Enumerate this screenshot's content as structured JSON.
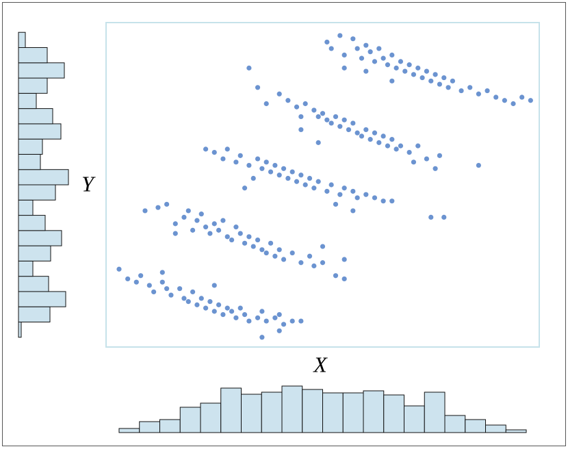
{
  "chart_data": {
    "type": "scatter",
    "xlabel": "X",
    "ylabel": "Y",
    "color": "#6b93d0",
    "hist_color": "#cde3ee",
    "xlim": [
      0,
      100
    ],
    "ylim": [
      0,
      100
    ],
    "x": [
      3,
      5,
      7,
      8,
      10,
      11,
      13,
      14,
      15,
      17,
      18,
      19,
      20,
      21,
      22,
      23,
      24,
      25,
      26,
      27,
      28,
      29,
      30,
      31,
      32,
      33,
      35,
      36,
      37,
      39,
      40,
      41,
      43,
      45,
      36,
      40,
      25,
      13,
      9,
      12,
      14,
      16,
      18,
      19,
      20,
      21,
      22,
      23,
      24,
      25,
      26,
      27,
      28,
      29,
      30,
      31,
      32,
      33,
      34,
      35,
      36,
      37,
      38,
      39,
      40,
      41,
      43,
      45,
      47,
      48,
      50,
      53,
      55,
      55,
      50,
      16,
      23,
      25,
      27,
      28,
      30,
      31,
      33,
      35,
      36,
      37,
      38,
      39,
      40,
      41,
      42,
      43,
      44,
      45,
      46,
      47,
      48,
      49,
      51,
      52,
      54,
      55,
      57,
      58,
      60,
      62,
      64,
      66,
      57,
      53,
      34,
      32,
      75,
      78,
      33,
      35,
      37,
      40,
      42,
      44,
      45,
      46,
      48,
      49,
      50,
      51,
      52,
      53,
      54,
      55,
      56,
      57,
      58,
      59,
      60,
      61,
      62,
      63,
      64,
      65,
      66,
      67,
      68,
      70,
      72,
      74,
      77,
      86,
      76,
      71,
      45,
      49,
      51,
      52,
      54,
      55,
      57,
      58,
      59,
      60,
      61,
      62,
      63,
      64,
      65,
      66,
      67,
      68,
      69,
      70,
      71,
      72,
      73,
      74,
      75,
      76,
      77,
      78,
      79,
      80,
      82,
      84,
      86,
      88,
      90,
      92,
      94,
      96,
      98,
      66,
      60,
      55
    ],
    "y": [
      24,
      21,
      20,
      22,
      19,
      17,
      20,
      18,
      16,
      18,
      15,
      14,
      17,
      13,
      15,
      12,
      14,
      11,
      13,
      10,
      12,
      11,
      9,
      12,
      10,
      8,
      9,
      11,
      8,
      9,
      10,
      7,
      8,
      8,
      3,
      5,
      19,
      23,
      42,
      43,
      44,
      38,
      40,
      42,
      36,
      39,
      41,
      37,
      35,
      38,
      36,
      39,
      34,
      33,
      37,
      35,
      32,
      34,
      31,
      33,
      30,
      29,
      32,
      28,
      30,
      27,
      29,
      26,
      28,
      25,
      26,
      22,
      27,
      21,
      31,
      35,
      61,
      60,
      58,
      61,
      57,
      59,
      56,
      58,
      55,
      57,
      54,
      56,
      53,
      55,
      52,
      54,
      51,
      53,
      50,
      52,
      49,
      51,
      48,
      50,
      47,
      49,
      48,
      46,
      47,
      46,
      45,
      45,
      42,
      44,
      52,
      49,
      40,
      40,
      86,
      80,
      75,
      78,
      76,
      74,
      71,
      75,
      73,
      71,
      72,
      70,
      69,
      71,
      68,
      70,
      67,
      69,
      66,
      65,
      67,
      64,
      66,
      63,
      65,
      62,
      64,
      61,
      62,
      60,
      62,
      58,
      59,
      56,
      55,
      57,
      67,
      63,
      94,
      92,
      96,
      90,
      95,
      92,
      89,
      93,
      91,
      88,
      92,
      89,
      87,
      90,
      86,
      88,
      85,
      87,
      84,
      86,
      83,
      85,
      82,
      84,
      81,
      83,
      80,
      82,
      79,
      80,
      78,
      79,
      77,
      76,
      75,
      77,
      76,
      82,
      85,
      86
    ],
    "marginal_x": {
      "bins": [
        3,
        7.7,
        12.4,
        17.1,
        21.8,
        26.5,
        31.2,
        35.9,
        40.6,
        45.3,
        50,
        54.7,
        59.4,
        64.1,
        68.8,
        73.5,
        78.2,
        82.9,
        87.6,
        92.3,
        97
      ],
      "counts": [
        6,
        16,
        19,
        37,
        43,
        65,
        56,
        59,
        68,
        63,
        58,
        58,
        61,
        55,
        39,
        59,
        25,
        19,
        11,
        4
      ]
    },
    "marginal_y": {
      "bins": [
        3,
        7.7,
        12.4,
        17.1,
        21.8,
        26.5,
        31.2,
        35.9,
        40.6,
        45.3,
        50,
        54.7,
        59.4,
        64.1,
        68.8,
        73.5,
        78.2,
        82.9,
        87.6,
        92.3,
        97
      ],
      "counts": [
        4,
        46,
        69,
        44,
        21,
        47,
        63,
        39,
        21,
        54,
        73,
        32,
        35,
        62,
        50,
        26,
        42,
        67,
        42,
        10
      ]
    }
  }
}
